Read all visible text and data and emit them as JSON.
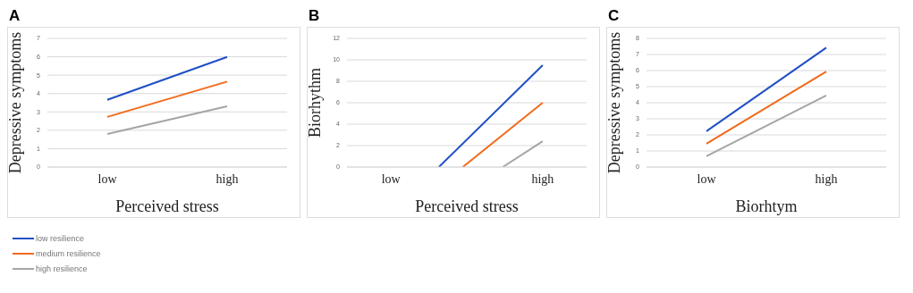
{
  "chart_data": [
    {
      "type": "line",
      "title": "A",
      "xlabel": "Perceived stress",
      "ylabel": "Depressive symptoms",
      "categories": [
        "low",
        "high"
      ],
      "ylim": [
        0,
        7
      ],
      "yticks": [
        0,
        1,
        2,
        3,
        4,
        5,
        6,
        7
      ],
      "grid": "y",
      "legend": "bottom left",
      "marker": "none",
      "series": [
        {
          "name": "low resilience",
          "color": "#1f4fc4",
          "values": [
            3.66,
            5.99
          ]
        },
        {
          "name": "medium resilience",
          "color": "#f26a1b",
          "values": [
            2.73,
            4.65
          ]
        },
        {
          "name": "high resilience",
          "color": "#a5a5a5",
          "values": [
            1.8,
            3.31
          ]
        }
      ]
    },
    {
      "type": "line",
      "title": "B",
      "xlabel": "Perceived stress",
      "ylabel": "Biorhythm",
      "categories": [
        null,
        null,
        null,
        null,
        null,
        "low",
        null,
        null,
        null,
        null,
        null,
        null,
        null,
        null,
        null,
        null,
        null,
        null,
        null,
        null,
        null,
        null,
        null,
        null,
        "high",
        null,
        null,
        null,
        null,
        null
      ],
      "ylim": [
        0,
        12
      ],
      "yticks": [
        0,
        2,
        4,
        6,
        8,
        10,
        12
      ],
      "grid": "y",
      "marker": "none",
      "series": [
        {
          "color": "#1f4fc4",
          "values": [
            null,
            null,
            null,
            null,
            null,
            null,
            null,
            null,
            null,
            null,
            null,
            0,
            null,
            null,
            null,
            null,
            null,
            null,
            null,
            null,
            null,
            null,
            null,
            null,
            9.5,
            null,
            null,
            null,
            null,
            null
          ]
        },
        {
          "color": "#f26a1b",
          "values": [
            null,
            null,
            null,
            null,
            null,
            null,
            null,
            null,
            null,
            null,
            null,
            null,
            null,
            null,
            0,
            null,
            null,
            null,
            null,
            null,
            null,
            null,
            null,
            null,
            6,
            null,
            null,
            null,
            null,
            null
          ]
        },
        {
          "color": "#a5a5a5",
          "values": [
            null,
            null,
            null,
            null,
            null,
            null,
            null,
            null,
            null,
            null,
            null,
            null,
            null,
            null,
            null,
            null,
            null,
            null,
            null,
            0,
            null,
            null,
            null,
            null,
            2.4,
            null,
            null,
            null,
            null,
            null
          ]
        }
      ]
    },
    {
      "type": "line",
      "title": "C",
      "xlabel": "Biorhtym",
      "ylabel": "Depressive symptoms",
      "categories": [
        "low",
        "high"
      ],
      "ylim": [
        0,
        8
      ],
      "yticks": [
        0,
        1,
        2,
        3,
        4,
        5,
        6,
        7,
        8
      ],
      "grid": "y",
      "marker": "none",
      "series": [
        {
          "color": "#1f4fc4",
          "values": [
            2.23,
            7.42
          ]
        },
        {
          "color": "#f26a1b",
          "values": [
            1.45,
            5.94
          ]
        },
        {
          "color": "#a5a5a5",
          "values": [
            0.67,
            4.45
          ]
        }
      ]
    }
  ]
}
